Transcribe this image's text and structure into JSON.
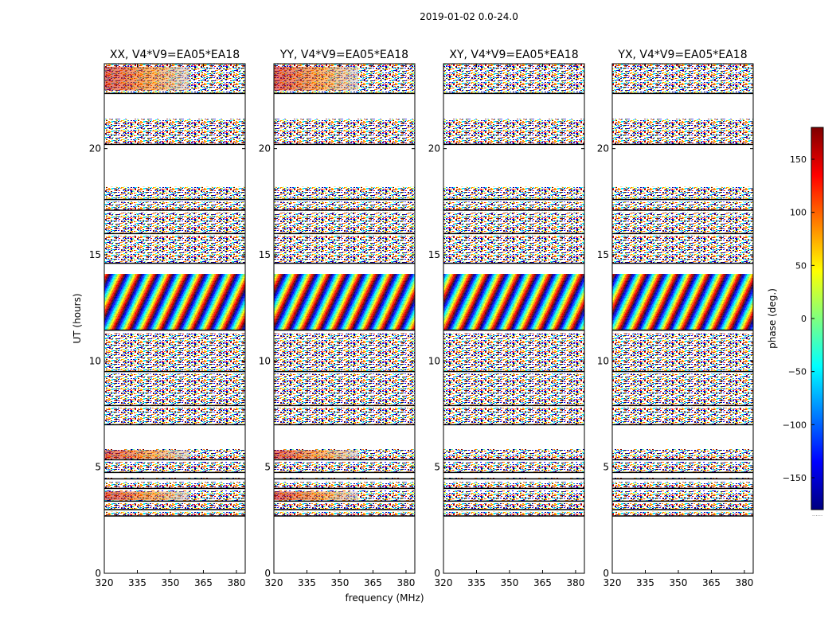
{
  "chart_data": {
    "type": "heatmap",
    "suptitle": "2019-01-02 0.0-24.0",
    "xlabel": "frequency (MHz)",
    "ylabel": "UT (hours)",
    "xlim": [
      320,
      384
    ],
    "ylim": [
      0,
      24
    ],
    "xticks": [
      320,
      335,
      350,
      365,
      380
    ],
    "yticks": [
      0,
      5,
      10,
      15,
      20
    ],
    "panels": [
      {
        "title": "XX, V4*V9=EA05*EA18",
        "polarization": "XX",
        "coherent_fringes": true
      },
      {
        "title": "YY, V4*V9=EA05*EA18",
        "polarization": "YY",
        "coherent_fringes": true
      },
      {
        "title": "XY, V4*V9=EA05*EA18",
        "polarization": "XY",
        "coherent_fringes": false
      },
      {
        "title": "YX, V4*V9=EA05*EA18",
        "polarization": "YX",
        "coherent_fringes": false
      }
    ],
    "data_time_blocks_hours": [
      [
        2.7,
        2.9
      ],
      [
        3.0,
        3.3
      ],
      [
        3.4,
        3.9
      ],
      [
        4.0,
        4.3
      ],
      [
        4.45,
        4.5
      ],
      [
        4.75,
        5.25
      ],
      [
        5.35,
        5.85
      ],
      [
        7.0,
        7.8
      ],
      [
        7.9,
        9.4
      ],
      [
        9.5,
        11.3
      ],
      [
        11.45,
        14.1
      ],
      [
        14.6,
        15.9
      ],
      [
        16.0,
        17.0
      ],
      [
        17.1,
        17.5
      ],
      [
        17.6,
        18.2
      ],
      [
        20.2,
        21.4
      ],
      [
        22.6,
        24.0
      ]
    ],
    "colorbar": {
      "label": "phase (deg.)",
      "range": [
        -180,
        180
      ],
      "ticks": [
        -150,
        -100,
        -50,
        0,
        50,
        100,
        150
      ],
      "colormap": "jet",
      "under_label": "......"
    }
  },
  "colors": {
    "cmap": [
      "#00007f",
      "#0000ff",
      "#007fff",
      "#00ffff",
      "#7fff7f",
      "#ffff00",
      "#ff7f00",
      "#ff0000",
      "#7f0000"
    ]
  }
}
